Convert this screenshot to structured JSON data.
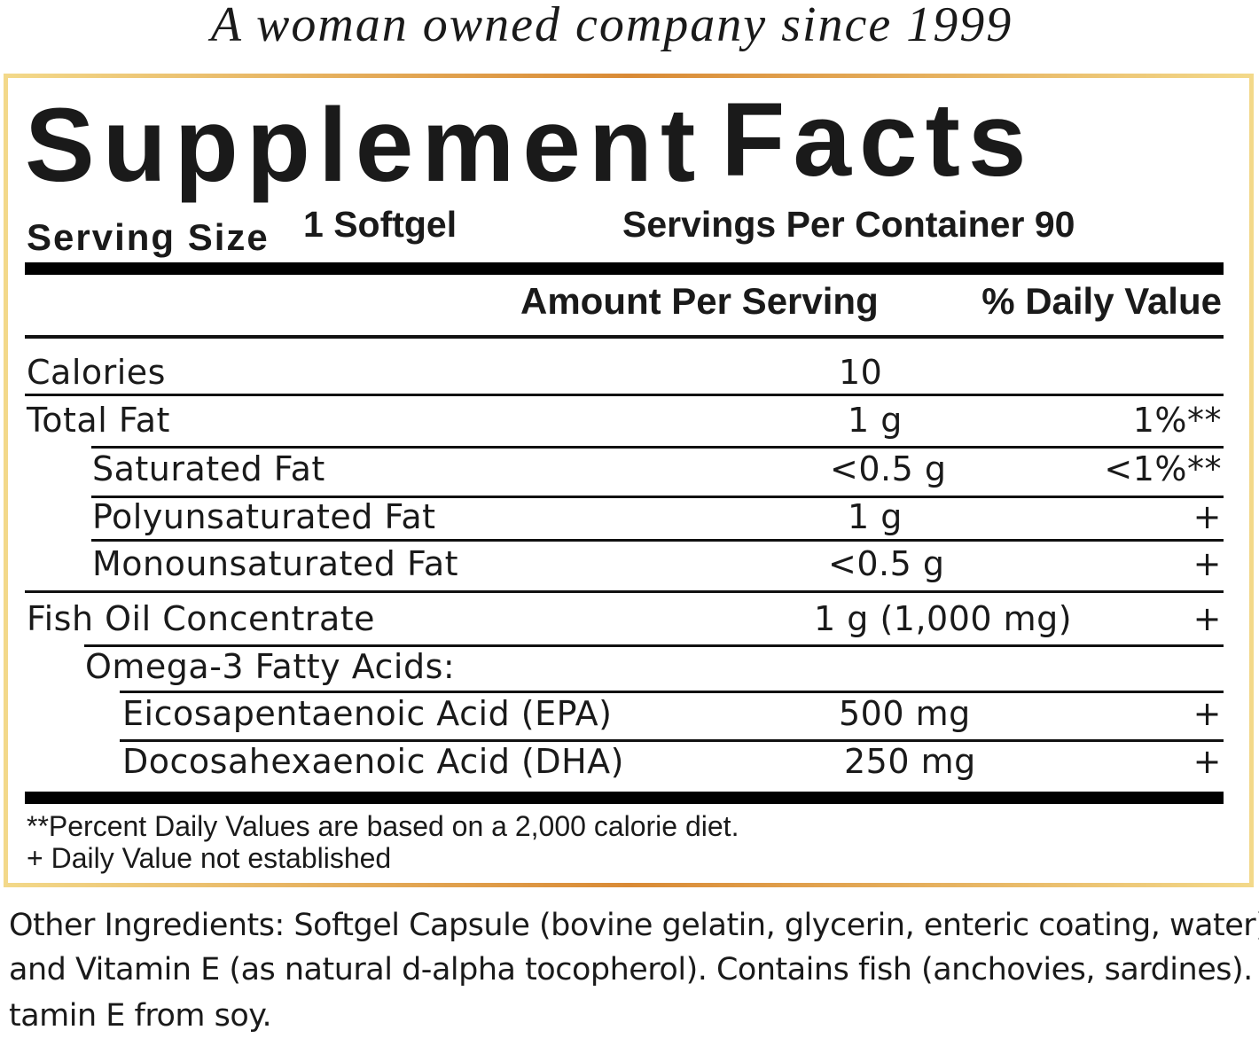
{
  "tagline": "A woman owned company since 1999",
  "title_word1": "Supplement",
  "title_word2": "Facts",
  "serving_size_label": "Serving Size",
  "serving_size_value": "1 Softgel",
  "servings_per_container": "Servings Per Container 90",
  "header": {
    "amount": "Amount Per Serving",
    "daily_value": "% Daily Value"
  },
  "rows": [
    {
      "name": "Calories",
      "amount": "10",
      "dv": ""
    },
    {
      "name": "Total Fat",
      "amount": "1 g",
      "dv": "1%**"
    },
    {
      "name": "Saturated Fat",
      "amount": "<0.5 g",
      "dv": "<1%**"
    },
    {
      "name": "Polyunsaturated Fat",
      "amount": "1 g",
      "dv": "+"
    },
    {
      "name": "Monounsaturated Fat",
      "amount": "<0.5 g",
      "dv": "+"
    },
    {
      "name": "Fish Oil Concentrate",
      "amount": "1 g (1,000 mg)",
      "dv": "+"
    },
    {
      "name": "Omega-3 Fatty Acids:",
      "amount": "",
      "dv": ""
    },
    {
      "name": "Eicosapentaenoic Acid (EPA)",
      "amount": "500 mg",
      "dv": "+"
    },
    {
      "name": "Docosahexaenoic Acid (DHA)",
      "amount": "250 mg",
      "dv": "+"
    }
  ],
  "footnotes": [
    "**Percent Daily Values are based on a 2,000 calorie diet.",
    "+ Daily Value not established"
  ],
  "other_ingredients": [
    "Other Ingredients: Softgel Capsule (bovine gelatin, glycerin,  enteric coating, water)",
    "and Vitamin E (as natural d-alpha  tocopherol). Contains fish (anchovies, sardines). Vi-",
    "tamin E from soy."
  ],
  "colors": {
    "border_light": "#f3d98a",
    "border_dark": "#d98a35",
    "text": "#1a1a1a"
  }
}
